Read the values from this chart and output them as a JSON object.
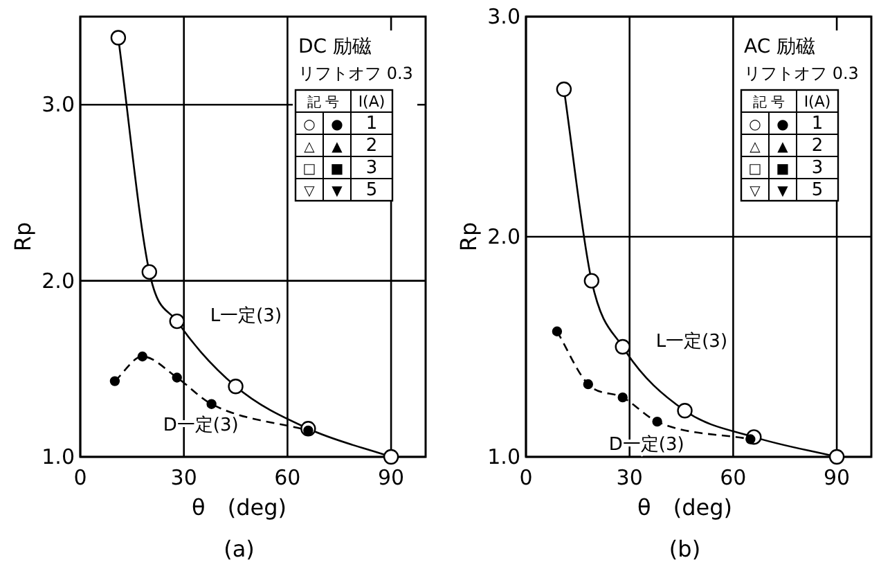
{
  "chart_data": [
    {
      "type": "line",
      "title": "(a)",
      "xlabel": "θ　(deg)",
      "ylabel": "Rp",
      "xlim": [
        0,
        100
      ],
      "ylim": [
        1,
        3.5
      ],
      "xticks": [
        0,
        30,
        60,
        90
      ],
      "yticks": [
        {
          "value": 1,
          "label": "1.0"
        },
        {
          "value": 2,
          "label": "2.0"
        },
        {
          "value": 3,
          "label": "3.0"
        }
      ],
      "grid": true,
      "series": [
        {
          "name": "L一定(3)",
          "color": "#000000",
          "x": [
            11,
            20,
            28,
            45,
            66,
            90
          ],
          "values": [
            3.38,
            2.05,
            1.77,
            1.4,
            1.16,
            1.0
          ],
          "marker": "circle",
          "line_style": "solid"
        },
        {
          "name": "D一定(3)",
          "color": "#000000",
          "x": [
            10,
            18,
            28,
            38,
            66
          ],
          "values": [
            1.43,
            1.57,
            1.45,
            1.3,
            1.15
          ],
          "marker": "circle",
          "line_style": "dashed"
        }
      ],
      "annotations": [
        "DC 励磁",
        "リフトオフ 0.3",
        "記 号",
        "I(A)",
        "○",
        "●",
        "1",
        "△",
        "▲",
        "2",
        "□",
        "■",
        "3",
        "▽",
        "▼",
        "5"
      ]
    },
    {
      "type": "line",
      "title": "(b)",
      "xlabel": "θ　(deg)",
      "ylabel": "Rp",
      "xlim": [
        0,
        100
      ],
      "ylim": [
        1,
        3
      ],
      "xticks": [
        0,
        30,
        60,
        90
      ],
      "yticks": [
        {
          "value": 1,
          "label": "1.0"
        },
        {
          "value": 2,
          "label": "2.0"
        },
        {
          "value": 3,
          "label": "3.0"
        }
      ],
      "grid": true,
      "series": [
        {
          "name": "L一定(3)",
          "color": "#000000",
          "x": [
            11,
            19,
            28,
            46,
            66,
            90
          ],
          "values": [
            2.67,
            1.8,
            1.5,
            1.21,
            1.09,
            1.0
          ],
          "marker": "circle",
          "line_style": "solid"
        },
        {
          "name": "D一定(3)",
          "color": "#000000",
          "x": [
            9,
            18,
            28,
            38,
            65
          ],
          "values": [
            1.57,
            1.33,
            1.27,
            1.16,
            1.08
          ],
          "marker": "circle",
          "line_style": "dashed"
        }
      ],
      "annotations": [
        "AC 励磁",
        "リフトオフ 0.3",
        "記 号",
        "I(A)",
        "○",
        "●",
        "1",
        "△",
        "▲",
        "2",
        "□",
        "■",
        "3",
        "▽",
        "▼",
        "5"
      ]
    }
  ]
}
